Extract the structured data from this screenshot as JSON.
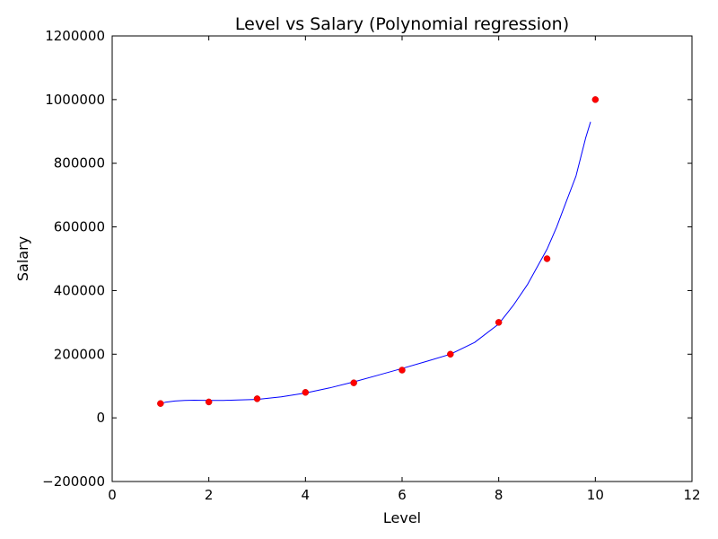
{
  "chart_data": {
    "type": "scatter",
    "title": "Level vs Salary (Polynomial regression)",
    "xlabel": "Level",
    "ylabel": "Salary",
    "xlim": [
      0,
      12
    ],
    "ylim": [
      -200000,
      1200000
    ],
    "xticks": [
      0,
      2,
      4,
      6,
      8,
      10,
      12
    ],
    "xtick_labels": [
      "0",
      "2",
      "4",
      "6",
      "8",
      "10",
      "12"
    ],
    "yticks": [
      -200000,
      0,
      200000,
      400000,
      600000,
      800000,
      1000000,
      1200000
    ],
    "ytick_labels": [
      "−200000",
      "0",
      "200000",
      "400000",
      "600000",
      "800000",
      "1000000",
      "1200000"
    ],
    "grid": false,
    "series": [
      {
        "kind": "scatter",
        "color": "#ff0000",
        "x": [
          1,
          2,
          3,
          4,
          5,
          6,
          7,
          8,
          9,
          10
        ],
        "y": [
          45000,
          50000,
          60000,
          80000,
          110000,
          150000,
          200000,
          300000,
          500000,
          1000000
        ]
      },
      {
        "kind": "line",
        "color": "#0000ff",
        "x": [
          1.0,
          1.1,
          1.3,
          1.5,
          1.7,
          2.0,
          2.3,
          2.6,
          3.0,
          3.5,
          4.0,
          4.5,
          5.0,
          5.5,
          6.0,
          6.5,
          7.0,
          7.5,
          8.0,
          8.3,
          8.6,
          9.0,
          9.2,
          9.4,
          9.6,
          9.8,
          9.9
        ],
        "y": [
          45000,
          49000,
          53000,
          55000,
          55500,
          55000,
          55000,
          56000,
          58000,
          66000,
          78000,
          94000,
          113000,
          134000,
          155000,
          177000,
          200000,
          237000,
          295000,
          353000,
          420000,
          530000,
          600000,
          680000,
          760000,
          880000,
          930000
        ]
      }
    ]
  }
}
